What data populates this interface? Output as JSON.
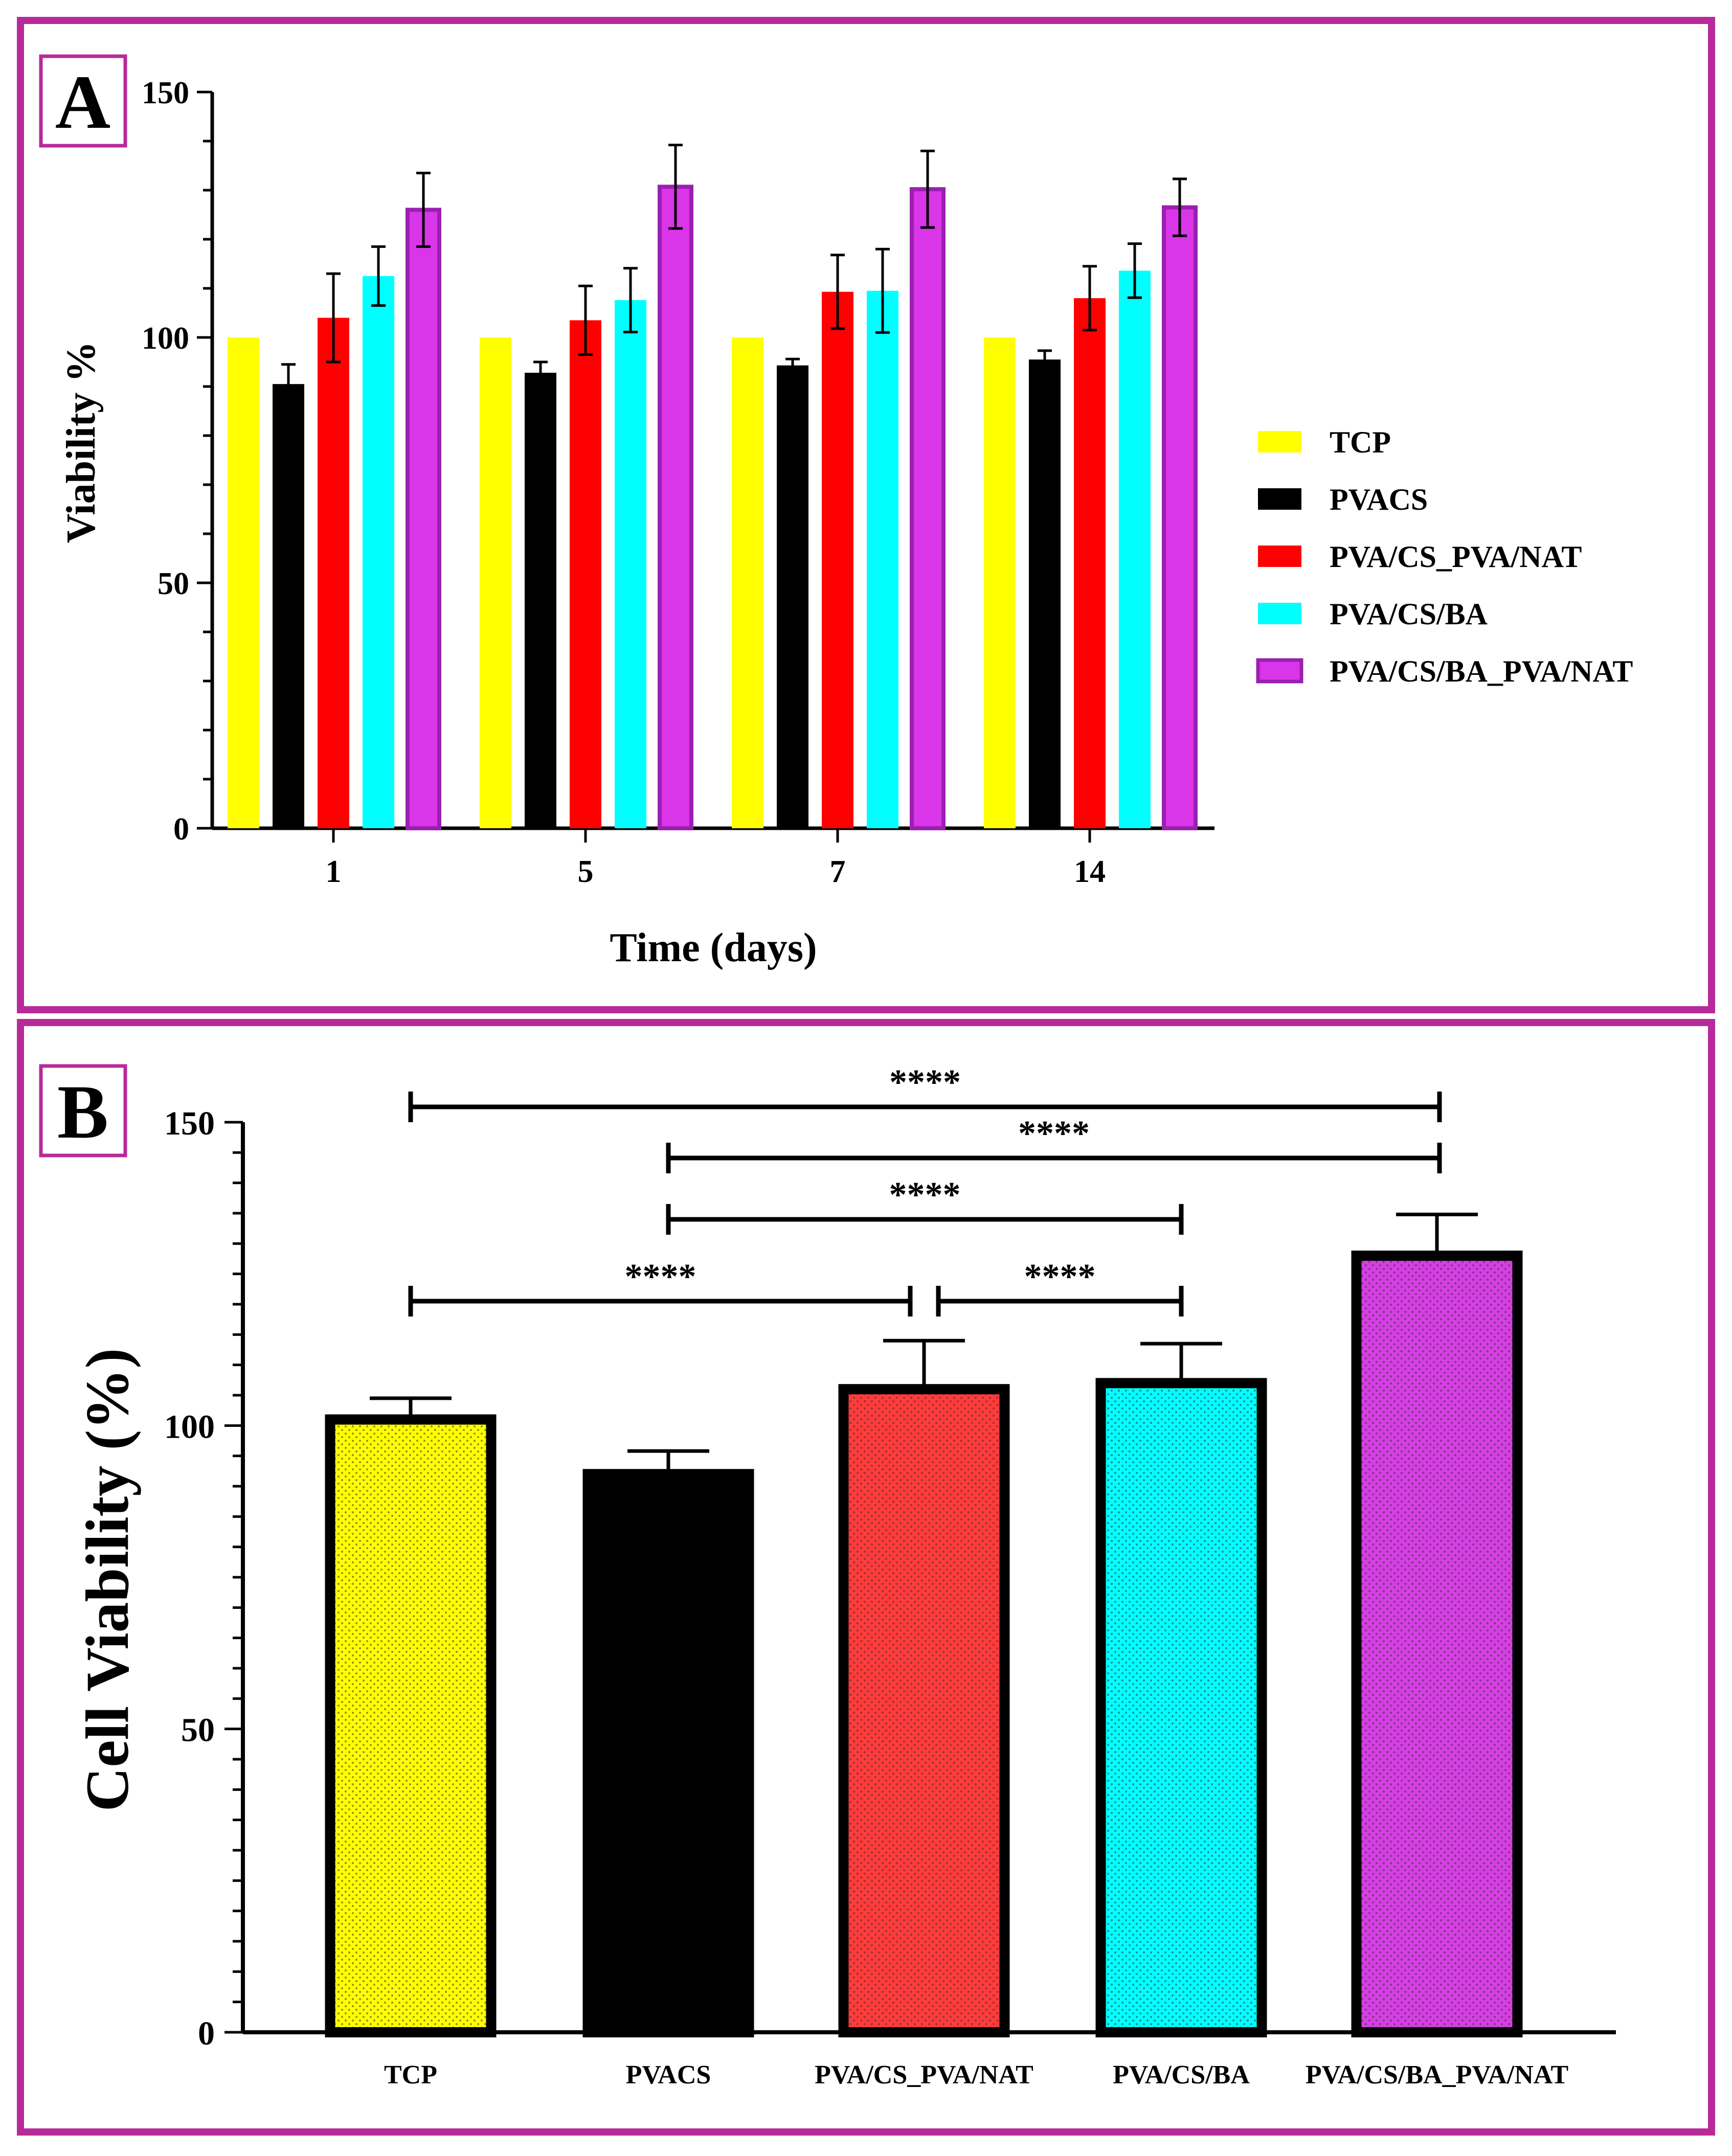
{
  "figure": {
    "frame_color": "#b82a9a"
  },
  "chart_data": [
    {
      "panel": "A",
      "type": "bar",
      "title": "",
      "xlabel": "Time (days)",
      "ylabel": "Viability %",
      "ylim": [
        0,
        150
      ],
      "yticks": [
        0,
        50,
        100,
        150
      ],
      "categories": [
        "1",
        "5",
        "7",
        "14"
      ],
      "legend_position": "right",
      "series": [
        {
          "name": "TCP",
          "color": "#ffff00",
          "values": [
            100,
            100,
            100,
            100
          ],
          "errors": [
            0,
            0,
            0,
            0
          ]
        },
        {
          "name": "PVACS",
          "color": "#000000",
          "values": [
            90.5,
            92.8,
            94.3,
            95.5
          ],
          "errors": [
            4,
            2.2,
            1.3,
            1.8
          ]
        },
        {
          "name": "PVA/CS_PVA/NAT",
          "color": "#ff0000",
          "values": [
            104,
            103.5,
            109.3,
            108
          ],
          "errors": [
            9,
            7,
            7.5,
            6.5
          ]
        },
        {
          "name": "PVA/CS/BA",
          "color": "#00ffff",
          "values": [
            112.5,
            107.6,
            109.5,
            113.6
          ],
          "errors": [
            6,
            6.5,
            8.5,
            5.5
          ]
        },
        {
          "name": "PVA/CS/BA_PVA/NAT",
          "color": "#d836e8",
          "values": [
            126,
            130.7,
            130.2,
            126.5
          ],
          "errors": [
            7.5,
            8.5,
            7.8,
            5.8
          ]
        }
      ]
    },
    {
      "panel": "B",
      "type": "bar",
      "title": "",
      "xlabel": "",
      "ylabel": "Cell Viability (%)",
      "ylim": [
        0,
        150
      ],
      "yticks": [
        0,
        50,
        100,
        150
      ],
      "categories": [
        "TCP",
        "PVACS",
        "PVA/CS_PVA/NAT",
        "PVA/CS/BA",
        "PVA/CS/BA_PVA/NAT"
      ],
      "values": [
        101,
        92,
        106,
        107,
        128
      ],
      "errors": [
        3.5,
        3.8,
        8,
        6.5,
        6.8
      ],
      "colors": [
        "#ffff00",
        "#000000",
        "#ff3b3b",
        "#00ffff",
        "#d53fe3"
      ],
      "significance": [
        {
          "from": 0,
          "to": 4,
          "label": "****"
        },
        {
          "from": 1,
          "to": 4,
          "label": "****"
        },
        {
          "from": 1,
          "to": 3,
          "label": "****"
        },
        {
          "from": 0,
          "to": 2,
          "label": "****"
        },
        {
          "from": 2,
          "to": 3,
          "label": "****"
        }
      ]
    }
  ]
}
